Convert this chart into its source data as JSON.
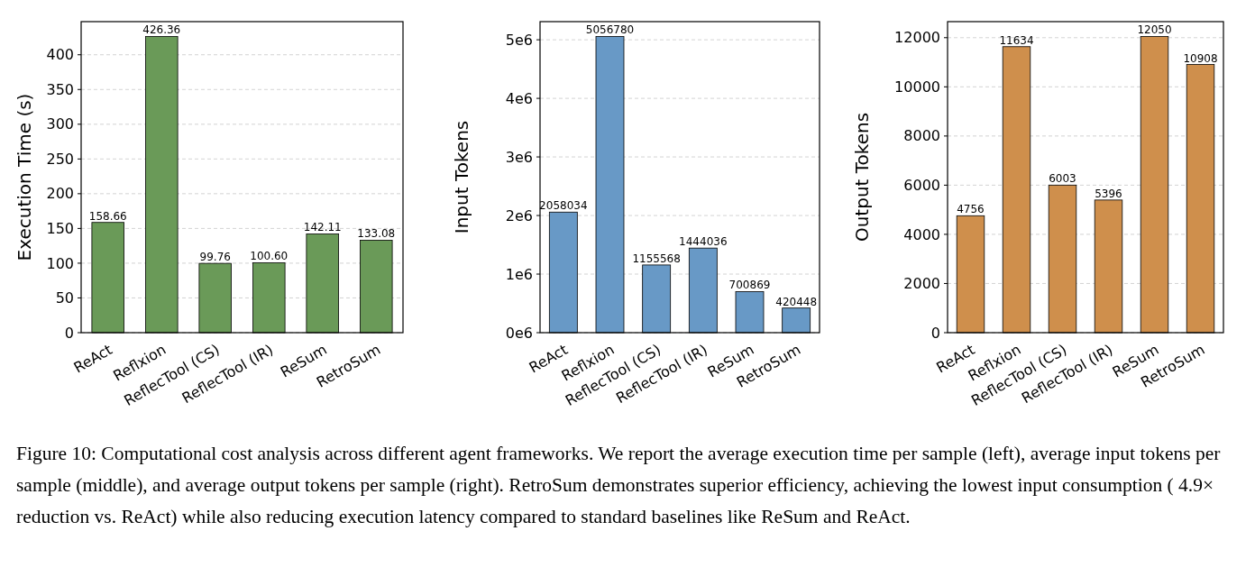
{
  "chart_data": [
    {
      "type": "bar",
      "ylabel": "Execution Time (s)",
      "categories": [
        "ReAct",
        "Reflxion",
        "ReflecTool (CS)",
        "ReflecTool (IR)",
        "ReSum",
        "RetroSum"
      ],
      "values": [
        158.66,
        426.36,
        99.76,
        100.6,
        142.11,
        133.08
      ],
      "color": "#6a9a58",
      "value_labels": [
        "158.66",
        "426.36",
        "99.76",
        "100.60",
        "142.11",
        "133.08"
      ],
      "ylim": [
        0,
        447.68
      ],
      "yticks": [
        0,
        50,
        100,
        150,
        200,
        250,
        300,
        350,
        400
      ],
      "grid": "y",
      "annotations": [
        "Figure 10: Computational cost analysis across different agent frameworks. We report the average execution time per sample (left), average input tokens per sample (middle), and average output tokens per sample (right). RetroSum demonstrates superior efficiency, achieving the lowest input consumption ( 4.9× reduction vs. ReAct) while also reducing execution latency compared to standard baselines like ReSum and ReAct."
      ]
    },
    {
      "type": "bar",
      "ylabel": "Input Tokens",
      "categories": [
        "ReAct",
        "Reflxion",
        "ReflecTool (CS)",
        "ReflecTool (IR)",
        "ReSum",
        "RetroSum"
      ],
      "values": [
        2058034,
        5056780,
        1155568,
        1444036,
        700869,
        420448
      ],
      "color": "#6899c6",
      "data_labels": true,
      "ylim": [
        0,
        5309619
      ],
      "yticks": [
        {
          "value": 0,
          "label": "0e6"
        },
        {
          "value": 1000000,
          "label": "1e6"
        },
        {
          "value": 2000000,
          "label": "2e6"
        },
        {
          "value": 3000000,
          "label": "3e6"
        },
        {
          "value": 4000000,
          "label": "4e6"
        },
        {
          "value": 5000000,
          "label": "5e6"
        }
      ],
      "grid": "y"
    },
    {
      "type": "bar",
      "ylabel": "Output Tokens",
      "categories": [
        "ReAct",
        "Reflxion",
        "ReflecTool (CS)",
        "ReflecTool (IR)",
        "ReSum",
        "RetroSum"
      ],
      "values": [
        4756,
        11634,
        6003,
        5396,
        12050,
        10908
      ],
      "color": "#cf8f4c",
      "data_labels": true,
      "ylim": [
        0,
        12652.5
      ],
      "yticks": [
        0,
        2000,
        4000,
        6000,
        8000,
        10000,
        12000
      ],
      "grid": "y"
    }
  ]
}
